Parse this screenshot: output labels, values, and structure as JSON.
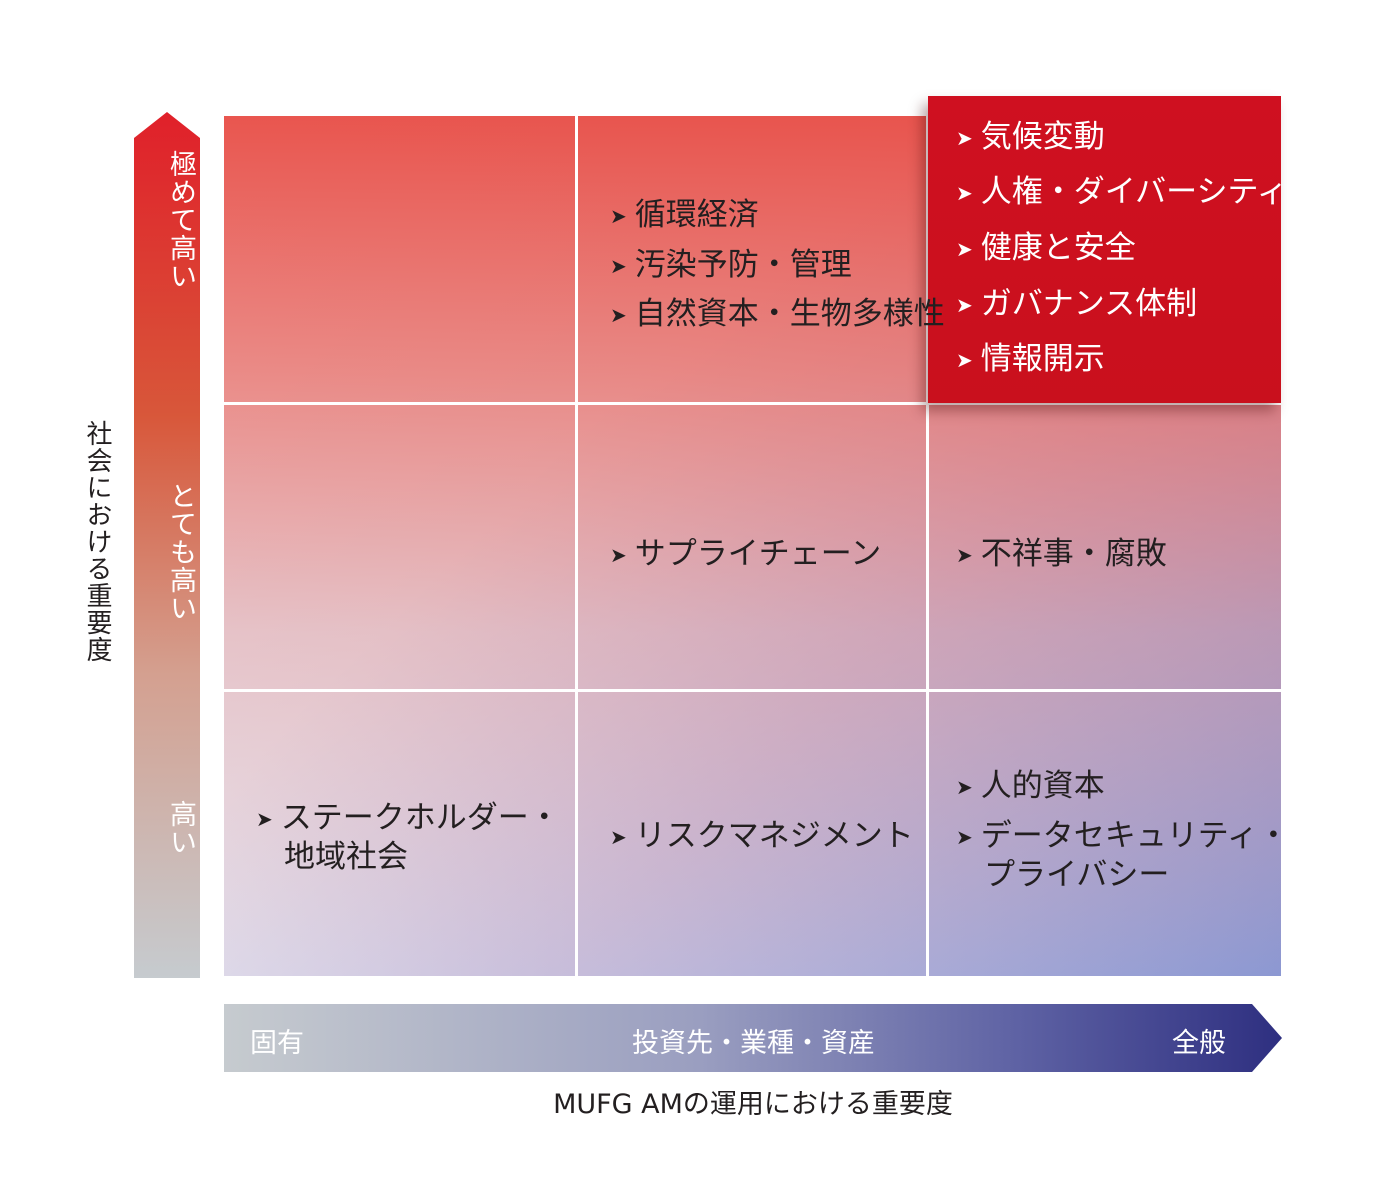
{
  "y_axis": {
    "title": "社会における重要度",
    "levels": [
      "極めて高い",
      "とても高い",
      "高い"
    ]
  },
  "x_axis": {
    "title": "MUFG AMの運用における重要度",
    "labels": [
      "固有",
      "投資先・業種・資産",
      "全般"
    ]
  },
  "cells": {
    "top_center": [
      "循環経済",
      "汚染予防・管理",
      "自然資本・生物多様性"
    ],
    "top_right": [
      "気候変動",
      "人権・ダイバーシティ",
      "健康と安全",
      "ガバナンス体制",
      "情報開示"
    ],
    "mid_center": [
      "サプライチェーン"
    ],
    "mid_right": [
      "不祥事・腐敗"
    ],
    "low_left": [
      "ステークホルダー・",
      "地域社会"
    ],
    "low_center": [
      "リスクマネジメント"
    ],
    "low_right": [
      "人的資本",
      "データセキュリティ・",
      "プライバシー"
    ]
  },
  "arrow_glyph": "➤",
  "colors": {
    "highlight": "#cf1020",
    "top_red": "#e8483f",
    "bottom_blue": "#8c98d2",
    "axis_grey": "#c6cbcf",
    "axis_navy": "#2e2f80"
  }
}
